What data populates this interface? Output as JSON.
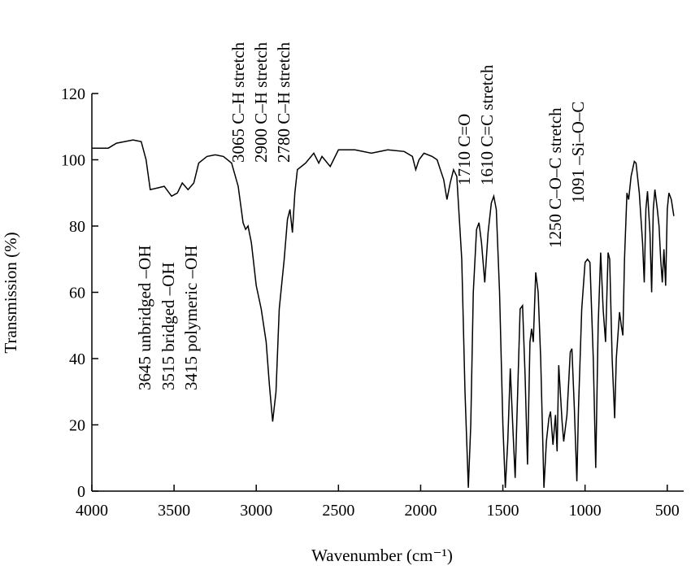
{
  "chart_data": {
    "type": "line",
    "x_label": "Wavenumber (cm⁻¹)",
    "y_label": "Transmission (%)",
    "xlim": [
      4000,
      400
    ],
    "ylim": [
      0,
      120
    ],
    "xticks": [
      4000,
      3500,
      3000,
      2500,
      2000,
      1500,
      1000,
      500
    ],
    "yticks": [
      0,
      20,
      40,
      60,
      80,
      100,
      120
    ],
    "annotations": [
      "3645 unbridged –OH",
      "3515 bridged –OH",
      "3415 polymeric –OH",
      "3065 C–H stretch",
      "2900 C–H stretch",
      "2780 C–H stretch",
      "1710 C=O",
      "1610 C=C stretch",
      "1250 C–O–C stretch",
      "1091 –Si–O–C"
    ],
    "series": [
      {
        "color": "#000000",
        "x": [
          4000,
          3900,
          3850,
          3750,
          3700,
          3670,
          3645,
          3600,
          3560,
          3515,
          3480,
          3450,
          3415,
          3380,
          3350,
          3300,
          3250,
          3200,
          3150,
          3110,
          3080,
          3065,
          3050,
          3030,
          3000,
          2970,
          2940,
          2920,
          2900,
          2880,
          2860,
          2830,
          2810,
          2795,
          2780,
          2765,
          2750,
          2700,
          2650,
          2620,
          2600,
          2550,
          2500,
          2400,
          2300,
          2200,
          2100,
          2050,
          2030,
          2010,
          1980,
          1930,
          1900,
          1880,
          1860,
          1840,
          1820,
          1800,
          1780,
          1750,
          1730,
          1710,
          1695,
          1680,
          1660,
          1645,
          1630,
          1610,
          1590,
          1570,
          1555,
          1540,
          1520,
          1500,
          1485,
          1470,
          1455,
          1440,
          1425,
          1410,
          1395,
          1380,
          1365,
          1350,
          1335,
          1325,
          1315,
          1300,
          1285,
          1270,
          1250,
          1235,
          1220,
          1210,
          1195,
          1180,
          1170,
          1160,
          1140,
          1130,
          1110,
          1090,
          1080,
          1065,
          1050,
          1040,
          1020,
          1000,
          985,
          970,
          950,
          935,
          920,
          905,
          890,
          875,
          860,
          850,
          835,
          820,
          810,
          790,
          780,
          770,
          760,
          745,
          735,
          720,
          700,
          690,
          670,
          650,
          640,
          630,
          620,
          605,
          595,
          585,
          575,
          560,
          550,
          540,
          530,
          520,
          510,
          500,
          490,
          475,
          460
        ],
        "values": [
          103.5,
          103.5,
          105,
          106,
          105.5,
          100,
          91,
          91.5,
          92,
          89,
          90,
          93,
          91,
          93,
          99,
          101,
          101.5,
          101,
          99,
          92,
          81,
          79,
          80,
          75,
          62,
          55,
          45,
          32,
          21,
          30,
          55,
          70,
          82,
          85,
          78,
          90,
          97,
          99,
          102,
          99,
          101,
          98,
          103,
          103,
          102,
          103,
          102.5,
          101,
          97,
          100,
          102,
          101,
          100,
          97,
          94,
          88,
          93,
          97,
          95,
          70,
          30,
          1,
          20,
          60,
          79,
          81,
          75,
          63,
          78,
          87,
          89,
          85,
          60,
          20,
          1,
          15,
          37,
          20,
          4,
          30,
          55,
          56,
          35,
          8,
          45,
          49,
          45,
          66,
          60,
          40,
          1,
          15,
          22,
          24,
          14,
          23,
          12,
          38,
          21,
          15,
          23,
          42,
          43,
          25,
          3,
          25,
          55,
          69,
          70,
          69,
          40,
          7,
          50,
          72,
          55,
          45,
          72,
          70,
          40,
          22,
          40,
          54,
          50,
          47,
          70,
          90,
          88,
          95,
          99.5,
          99,
          90,
          75,
          63,
          85,
          90.5,
          78,
          60,
          85,
          91,
          85,
          80,
          70,
          63,
          73,
          62,
          85,
          90,
          88,
          83
        ]
      }
    ]
  }
}
